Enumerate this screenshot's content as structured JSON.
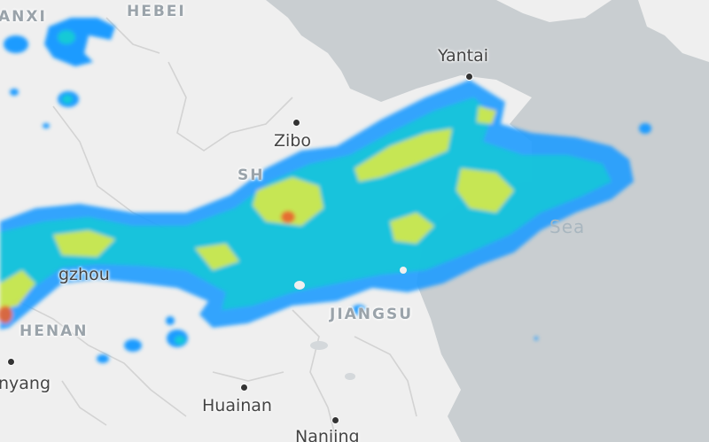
{
  "map": {
    "colors": {
      "land": "#efefef",
      "water": "#c9ced1",
      "boundary": "#d3d3d3",
      "radar_light": "#1e9bff",
      "radar_mid": "#19c9d6",
      "radar_strong": "#e6e94a",
      "radar_heavy": "#e8622e"
    },
    "labels": {
      "shanxi": "ANXI",
      "hebei": "HEBEI",
      "shandong": "SH",
      "henan": "HENAN",
      "jiangsu": "JIANGSU",
      "yantai": "Yantai",
      "zibo": "Zibo",
      "heze": "gzhou",
      "nanyang": "nyang",
      "huainan": "Huainan",
      "nanjing": "Nanjing",
      "sea": "Sea"
    }
  }
}
